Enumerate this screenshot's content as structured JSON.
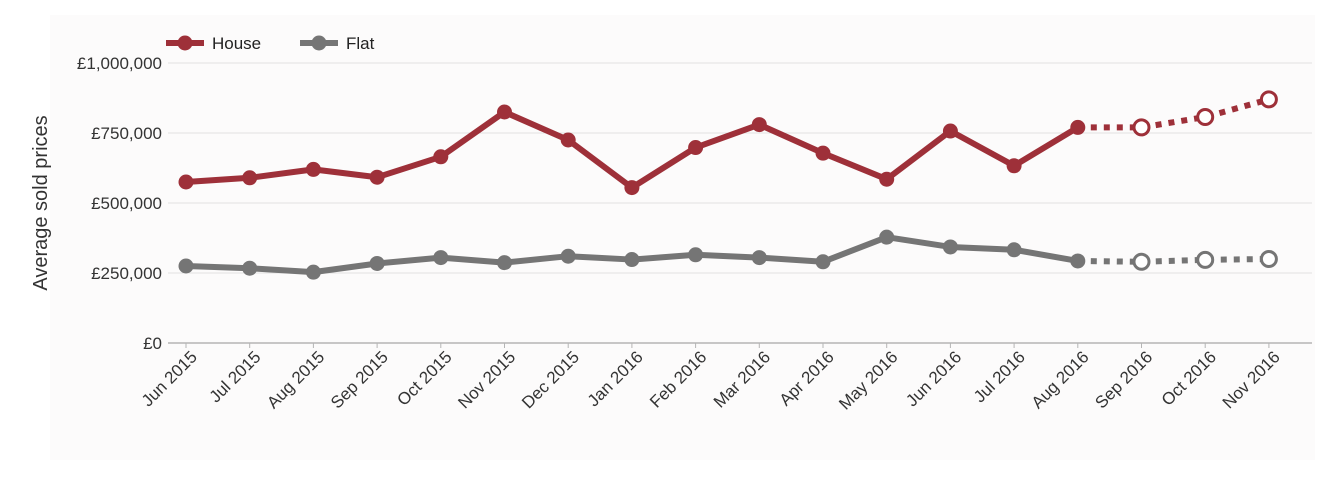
{
  "chart_data": {
    "type": "line",
    "title": "",
    "xlabel": "",
    "ylabel": "Average sold prices",
    "ylim": [
      0,
      1000000
    ],
    "y_ticks": [
      "£0",
      "£250,000",
      "£500,000",
      "£750,000",
      "£1,000,000"
    ],
    "y_tick_values": [
      0,
      250000,
      500000,
      750000,
      1000000
    ],
    "grid": true,
    "legend_position": "top-left",
    "categories": [
      "Jun 2015",
      "Jul 2015",
      "Aug 2015",
      "Sep 2015",
      "Oct 2015",
      "Nov 2015",
      "Dec 2015",
      "Jan 2016",
      "Feb 2016",
      "Mar 2016",
      "Apr 2016",
      "May 2016",
      "Jun 2016",
      "Jul 2016",
      "Aug 2016",
      "Sep 2016",
      "Oct 2016",
      "Nov 2016"
    ],
    "forecast_start_index": 14,
    "series": [
      {
        "name": "House",
        "color": "#9e3039",
        "values": [
          575000,
          590000,
          620000,
          592000,
          665000,
          825000,
          725000,
          555000,
          698000,
          780000,
          678000,
          585000,
          757000,
          633000,
          770000,
          770000,
          807000,
          870000
        ]
      },
      {
        "name": "Flat",
        "color": "#757575",
        "values": [
          275000,
          267000,
          253000,
          284000,
          305000,
          287000,
          310000,
          298000,
          315000,
          305000,
          290000,
          378000,
          343000,
          333000,
          293000,
          290000,
          297000,
          300000
        ]
      }
    ]
  }
}
